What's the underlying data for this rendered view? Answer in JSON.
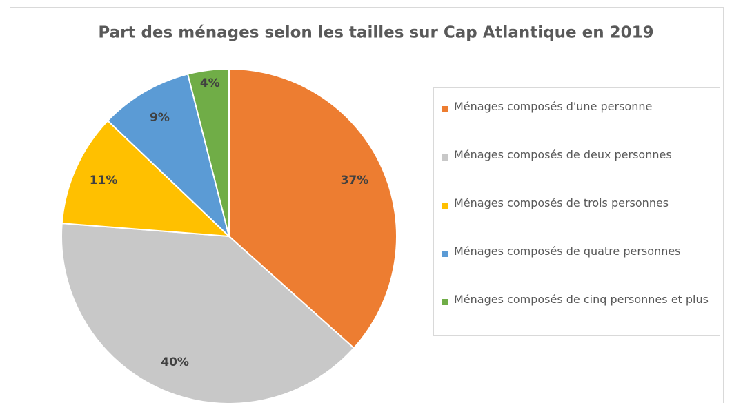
{
  "chart_data": {
    "type": "pie",
    "title": "Part des ménages selon les tailles sur Cap Atlantique en 2019",
    "categories": [
      "Ménages composés d'une personne",
      "Ménages composés de deux personnes",
      "Ménages composés de trois personnes",
      "Ménages composés de quatre personnes",
      "Ménages composés de cinq personnes et plus"
    ],
    "values": [
      37,
      40,
      11,
      9,
      4
    ],
    "value_labels": [
      "37%",
      "40%",
      "11%",
      "9%",
      "4%"
    ],
    "colors": [
      "#ED7D31",
      "#C8C8C8",
      "#FFC000",
      "#5B9BD5",
      "#70AD47"
    ],
    "legend": "right"
  }
}
